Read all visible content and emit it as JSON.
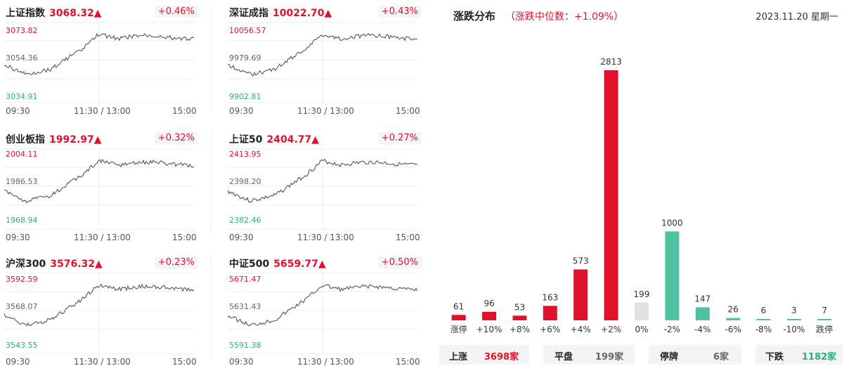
{
  "indices": [
    {
      "name": "上证指数",
      "value": "3068.32",
      "arrow": "▲",
      "pct": "+0.46%",
      "axis_high": "3073.82",
      "axis_mid": "3054.36",
      "axis_low": "3034.91"
    },
    {
      "name": "深证成指",
      "value": "10022.70",
      "arrow": "▲",
      "pct": "+0.43%",
      "axis_high": "10056.57",
      "axis_mid": "9979.69",
      "axis_low": "9902.81"
    },
    {
      "name": "创业板指",
      "value": "1992.97",
      "arrow": "▲",
      "pct": "+0.32%",
      "axis_high": "2004.11",
      "axis_mid": "1986.53",
      "axis_low": "1968.94"
    },
    {
      "name": "上证50",
      "value": "2404.77",
      "arrow": "▲",
      "pct": "+0.27%",
      "axis_high": "2413.95",
      "axis_mid": "2398.20",
      "axis_low": "2382.46"
    },
    {
      "name": "沪深300",
      "value": "3576.32",
      "arrow": "▲",
      "pct": "+0.23%",
      "axis_high": "3592.59",
      "axis_mid": "3568.07",
      "axis_low": "3543.55"
    },
    {
      "name": "中证500",
      "value": "5659.77",
      "arrow": "▲",
      "pct": "+0.50%",
      "axis_high": "5671.47",
      "axis_mid": "5631.43",
      "axis_low": "5591.38"
    }
  ],
  "time_labels": {
    "open": "09:30",
    "mid": "11:30 / 13:00",
    "close": "15:00"
  },
  "distribution": {
    "title": "涨跌分布",
    "subtitle": "（涨跌中位数：+1.09%）",
    "date": "2023.11.20 星期一"
  },
  "chart_data": {
    "type": "bar",
    "categories": [
      "涨停",
      "+10%",
      "+8%",
      "+6%",
      "+4%",
      "+2%",
      "0%",
      "-2%",
      "-4%",
      "-6%",
      "-8%",
      "-10%",
      "跌停"
    ],
    "values": [
      61,
      96,
      53,
      163,
      573,
      2813,
      199,
      1000,
      147,
      26,
      6,
      3,
      7
    ],
    "colors": [
      "#e0112b",
      "#e0112b",
      "#e0112b",
      "#e0112b",
      "#e0112b",
      "#e0112b",
      "#e2e2e2",
      "#4fc3a1",
      "#4fc3a1",
      "#4fc3a1",
      "#4fc3a1",
      "#4fc3a1",
      "#4fc3a1"
    ],
    "title": "涨跌分布",
    "ylim": [
      0,
      2813
    ]
  },
  "summary": [
    {
      "label": "上涨",
      "value": "3698家",
      "color": "#e0112b"
    },
    {
      "label": "平盘",
      "value": "199家",
      "color": "#666666"
    },
    {
      "label": "停牌",
      "value": "6家",
      "color": "#666666"
    },
    {
      "label": "下跌",
      "value": "1182家",
      "color": "#2fae7e"
    }
  ]
}
